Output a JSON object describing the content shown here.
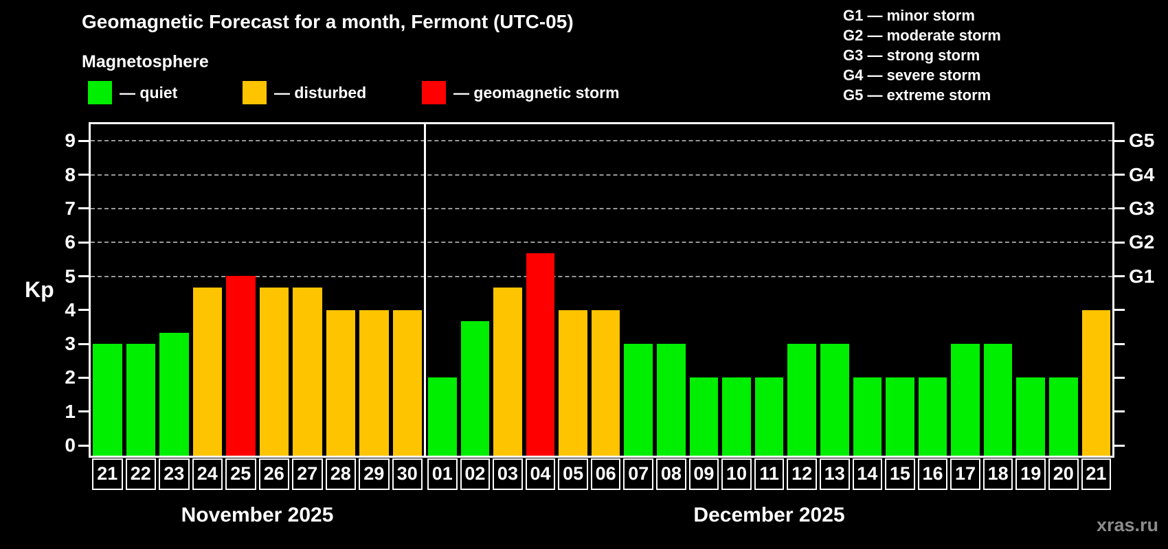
{
  "title": "Geomagnetic Forecast for a month, Fermont (UTC-05)",
  "subtitle": "Magnetosphere",
  "legend": {
    "items": [
      {
        "status": "quiet",
        "label": "— quiet",
        "color": "#00ee00"
      },
      {
        "status": "disturbed",
        "label": "— disturbed",
        "color": "#ffc400"
      },
      {
        "status": "storm",
        "label": "— geomagnetic storm",
        "color": "#ff0000"
      }
    ]
  },
  "g_scale_legend": [
    "G1 — minor storm",
    "G2 — moderate storm",
    "G3 — strong storm",
    "G4 — severe storm",
    "G5 — extreme storm"
  ],
  "watermark": "xras.ru",
  "chart_data": {
    "type": "bar",
    "ylabel": "Kp",
    "ylim": [
      0,
      9
    ],
    "yticks": [
      0,
      1,
      2,
      3,
      4,
      5,
      6,
      7,
      8,
      9
    ],
    "grid": "dashed horizontal lines at storm levels only",
    "legend_position": "top",
    "status_colors": {
      "quiet": "#00ee00",
      "disturbed": "#ffc400",
      "storm": "#ff0000"
    },
    "g_levels": [
      {
        "kp": 5,
        "label": "G1"
      },
      {
        "kp": 6,
        "label": "G2"
      },
      {
        "kp": 7,
        "label": "G3"
      },
      {
        "kp": 8,
        "label": "G4"
      },
      {
        "kp": 9,
        "label": "G5"
      }
    ],
    "groups": [
      {
        "month_label": "November 2025",
        "bars": [
          {
            "day": "21",
            "kp": 3.0,
            "status": "quiet"
          },
          {
            "day": "22",
            "kp": 3.0,
            "status": "quiet"
          },
          {
            "day": "23",
            "kp": 3.33,
            "status": "quiet"
          },
          {
            "day": "24",
            "kp": 4.67,
            "status": "disturbed"
          },
          {
            "day": "25",
            "kp": 5.0,
            "status": "storm"
          },
          {
            "day": "26",
            "kp": 4.67,
            "status": "disturbed"
          },
          {
            "day": "27",
            "kp": 4.67,
            "status": "disturbed"
          },
          {
            "day": "28",
            "kp": 4.0,
            "status": "disturbed"
          },
          {
            "day": "29",
            "kp": 4.0,
            "status": "disturbed"
          },
          {
            "day": "30",
            "kp": 4.0,
            "status": "disturbed"
          }
        ]
      },
      {
        "month_label": "December 2025",
        "bars": [
          {
            "day": "01",
            "kp": 2.0,
            "status": "quiet"
          },
          {
            "day": "02",
            "kp": 3.67,
            "status": "quiet"
          },
          {
            "day": "03",
            "kp": 4.67,
            "status": "disturbed"
          },
          {
            "day": "04",
            "kp": 5.67,
            "status": "storm"
          },
          {
            "day": "05",
            "kp": 4.0,
            "status": "disturbed"
          },
          {
            "day": "06",
            "kp": 4.0,
            "status": "disturbed"
          },
          {
            "day": "07",
            "kp": 3.0,
            "status": "quiet"
          },
          {
            "day": "08",
            "kp": 3.0,
            "status": "quiet"
          },
          {
            "day": "09",
            "kp": 2.0,
            "status": "quiet"
          },
          {
            "day": "10",
            "kp": 2.0,
            "status": "quiet"
          },
          {
            "day": "11",
            "kp": 2.0,
            "status": "quiet"
          },
          {
            "day": "12",
            "kp": 3.0,
            "status": "quiet"
          },
          {
            "day": "13",
            "kp": 3.0,
            "status": "quiet"
          },
          {
            "day": "14",
            "kp": 2.0,
            "status": "quiet"
          },
          {
            "day": "15",
            "kp": 2.0,
            "status": "quiet"
          },
          {
            "day": "16",
            "kp": 2.0,
            "status": "quiet"
          },
          {
            "day": "17",
            "kp": 3.0,
            "status": "quiet"
          },
          {
            "day": "18",
            "kp": 3.0,
            "status": "quiet"
          },
          {
            "day": "19",
            "kp": 2.0,
            "status": "quiet"
          },
          {
            "day": "20",
            "kp": 2.0,
            "status": "quiet"
          },
          {
            "day": "21",
            "kp": 4.0,
            "status": "disturbed"
          }
        ]
      }
    ]
  }
}
